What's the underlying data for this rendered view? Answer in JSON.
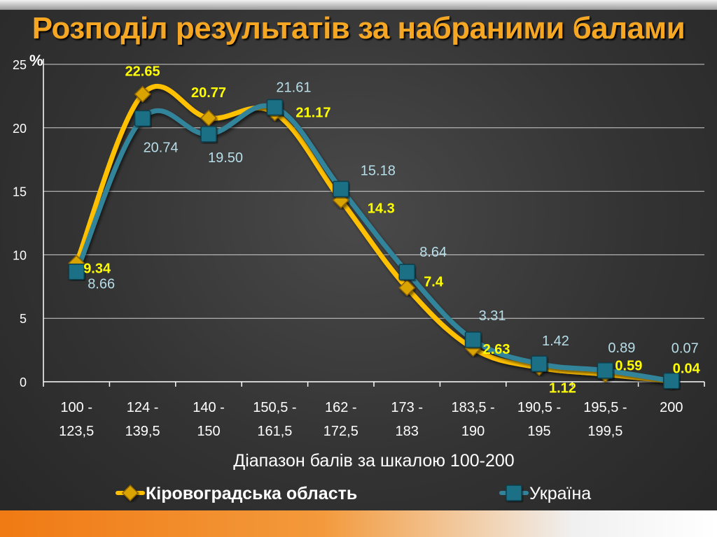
{
  "title": "Розподіл результатів за набраними балами",
  "chart_data": {
    "type": "line",
    "ylabel": "%",
    "xlabel": "Діапазон балів за шкалою 100-200",
    "ylim": [
      0,
      25
    ],
    "yticks": [
      0,
      5,
      10,
      15,
      20,
      25
    ],
    "grid": true,
    "legend_position": "bottom",
    "categories": [
      [
        "100 -",
        "123,5"
      ],
      [
        "124 -",
        "139,5"
      ],
      [
        "140 -",
        "150"
      ],
      [
        "150,5 -",
        "161,5"
      ],
      [
        "162 -",
        "172,5"
      ],
      [
        "173 -",
        "183"
      ],
      [
        "183,5 -",
        "190"
      ],
      [
        "190,5 -",
        "195"
      ],
      [
        "195,5 -",
        "199,5"
      ],
      [
        "200"
      ]
    ],
    "series": [
      {
        "name": "Кіровоградська область",
        "values": [
          9.34,
          22.65,
          20.77,
          21.17,
          14.3,
          7.4,
          2.63,
          1.12,
          0.59,
          0.04
        ],
        "labels": [
          "9.34",
          "22.65",
          "20.77",
          "21.17",
          "14.3",
          "7.4",
          "2.63",
          "1.12",
          "0.59",
          "0.04"
        ],
        "color": "#ffc000",
        "label_color": "#ffff00",
        "marker": "diamond"
      },
      {
        "name": "Україна",
        "values": [
          8.66,
          20.74,
          19.5,
          21.61,
          15.18,
          8.64,
          3.31,
          1.42,
          0.89,
          0.07
        ],
        "labels": [
          "8.66",
          "20.74",
          "19.50",
          "21.61",
          "15.18",
          "8.64",
          "3.31",
          "1.42",
          "0.89",
          "0.07"
        ],
        "color": "#31849b",
        "label_color": "#b7dee8",
        "marker": "square"
      }
    ]
  }
}
